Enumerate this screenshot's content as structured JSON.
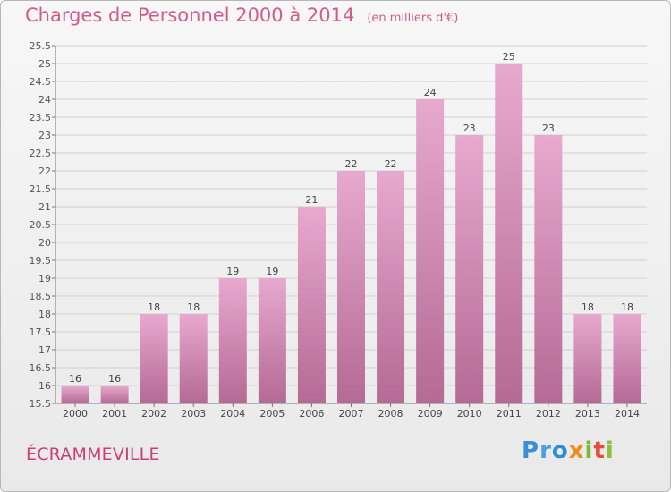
{
  "header": {
    "title": "Charges de Personnel 2000 à 2014",
    "subtitle": "(en milliers d'€)"
  },
  "footer": {
    "town": "ÉCRAMMEVILLE",
    "logo": "Proxiti"
  },
  "colors": {
    "bar_top": "#e8a9cf",
    "bar_bottom": "#b46a94",
    "title": "#d45a8c",
    "grid": "#d0d0d0"
  },
  "chart_data": {
    "type": "bar",
    "categories": [
      "2000",
      "2001",
      "2002",
      "2003",
      "2004",
      "2005",
      "2006",
      "2007",
      "2008",
      "2009",
      "2010",
      "2011",
      "2012",
      "2013",
      "2014"
    ],
    "values": [
      16,
      16,
      18,
      18,
      19,
      19,
      21,
      22,
      22,
      24,
      23,
      25,
      23,
      18,
      18
    ],
    "data_labels": [
      "16",
      "16",
      "18",
      "18",
      "19",
      "19",
      "21",
      "22",
      "22",
      "24",
      "23",
      "25",
      "23",
      "18",
      "18"
    ],
    "ylim": [
      15.5,
      25.5
    ],
    "yticks": [
      "15.5",
      "16",
      "16.5",
      "17",
      "17.5",
      "18",
      "18.5",
      "19",
      "19.5",
      "20",
      "20.5",
      "21",
      "21.5",
      "22",
      "22.5",
      "23",
      "23.5",
      "24",
      "24.5",
      "25",
      "25.5"
    ],
    "grid": true,
    "title": "Charges de Personnel 2000 à 2014",
    "xlabel": "",
    "ylabel": ""
  }
}
